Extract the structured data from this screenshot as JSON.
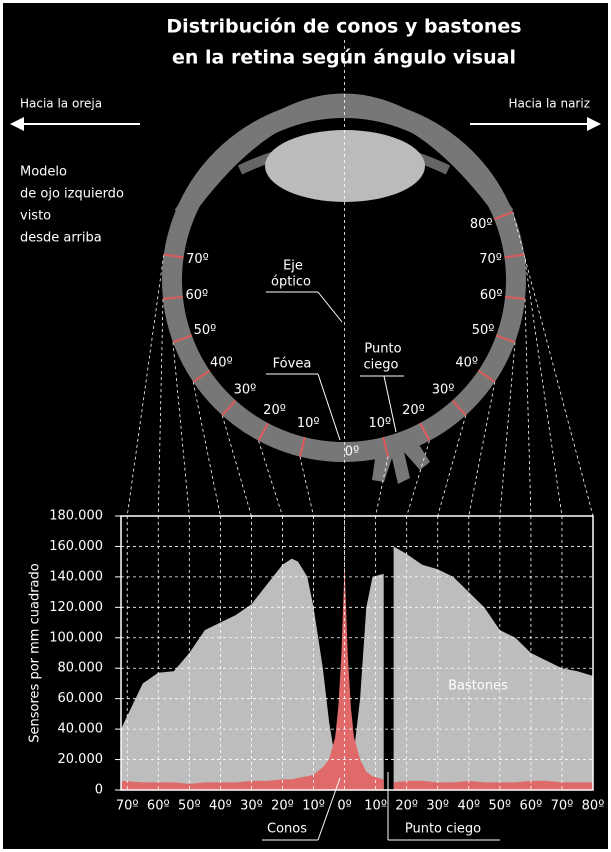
{
  "chart_data": {
    "type": "area",
    "title": [
      "Distribución de conos y bastones",
      "en la retina según ángulo visual"
    ],
    "y_label": "Sensores por mm cuadrado",
    "x": [
      -72,
      -65,
      -60,
      -55,
      -50,
      -45,
      -40,
      -35,
      -30,
      -25,
      -20,
      -17,
      -15,
      -12,
      -10,
      -7,
      -5,
      -3,
      -2,
      -1,
      0,
      1,
      2,
      3,
      5,
      7,
      9,
      12.6,
      14,
      15.8,
      20,
      25,
      30,
      35,
      40,
      45,
      50,
      55,
      60,
      65,
      70,
      75,
      80
    ],
    "series": [
      {
        "name": "Bastones",
        "color": "#bdbdbd",
        "values": [
          40000,
          70000,
          77000,
          78000,
          90000,
          105000,
          110000,
          115000,
          122000,
          135000,
          148000,
          152000,
          150000,
          140000,
          120000,
          80000,
          45000,
          20000,
          12000,
          6000,
          2000,
          6000,
          12000,
          25000,
          60000,
          120000,
          140000,
          142000,
          null,
          160000,
          155000,
          148000,
          145000,
          140000,
          130000,
          120000,
          105000,
          100000,
          90000,
          85000,
          80000,
          78000,
          75000
        ]
      },
      {
        "name": "Conos",
        "color": "#e06a6a",
        "values": [
          6000,
          5000,
          5000,
          5000,
          4000,
          5000,
          5000,
          5000,
          6000,
          6000,
          7000,
          7000,
          8000,
          9000,
          10000,
          15000,
          20000,
          35000,
          55000,
          90000,
          148000,
          90000,
          55000,
          35000,
          20000,
          12000,
          9000,
          7000,
          null,
          5000,
          6000,
          6000,
          5000,
          5000,
          6000,
          5000,
          5000,
          5000,
          6000,
          6000,
          5000,
          5000,
          5000
        ]
      }
    ],
    "blind_spot_label": "Punto ciego",
    "xlim": [
      -72,
      80
    ],
    "xticks": [
      {
        "value": -70,
        "label": "70º"
      },
      {
        "value": -60,
        "label": "60º"
      },
      {
        "value": -50,
        "label": "50º"
      },
      {
        "value": -40,
        "label": "40º"
      },
      {
        "value": -30,
        "label": "30º"
      },
      {
        "value": -20,
        "label": "20º"
      },
      {
        "value": -10,
        "label": "10º"
      },
      {
        "value": 0,
        "label": "0º"
      },
      {
        "value": 10,
        "label": "10º"
      },
      {
        "value": 20,
        "label": "20º"
      },
      {
        "value": 30,
        "label": "30º"
      },
      {
        "value": 40,
        "label": "40º"
      },
      {
        "value": 50,
        "label": "50º"
      },
      {
        "value": 60,
        "label": "60º"
      },
      {
        "value": 70,
        "label": "70º"
      },
      {
        "value": 80,
        "label": "80º"
      }
    ],
    "ylim": [
      0,
      180000
    ],
    "yticks": [
      0,
      {
        "value": 20000,
        "label": "20.000"
      },
      {
        "value": 40000,
        "label": "40.000"
      },
      {
        "value": 60000,
        "label": "60.000"
      },
      {
        "value": 80000,
        "label": "80.000"
      },
      {
        "value": 100000,
        "label": "100.000"
      },
      {
        "value": 120000,
        "label": "120.000"
      },
      {
        "value": 140000,
        "label": "140.000"
      },
      {
        "value": 160000,
        "label": "160.000"
      },
      {
        "value": 180000,
        "label": "180.000"
      }
    ],
    "grid": true
  },
  "diagram": {
    "toward_ear": "Hacia la oreja",
    "toward_nose": "Hacia la nariz",
    "model": [
      "Modelo",
      "de ojo izquierdo",
      "visto",
      "desde arriba"
    ],
    "optic_axis": [
      "Eje",
      "óptico"
    ],
    "fovea": "Fóvea",
    "blind_spot": [
      "Punto",
      "ciego"
    ]
  }
}
